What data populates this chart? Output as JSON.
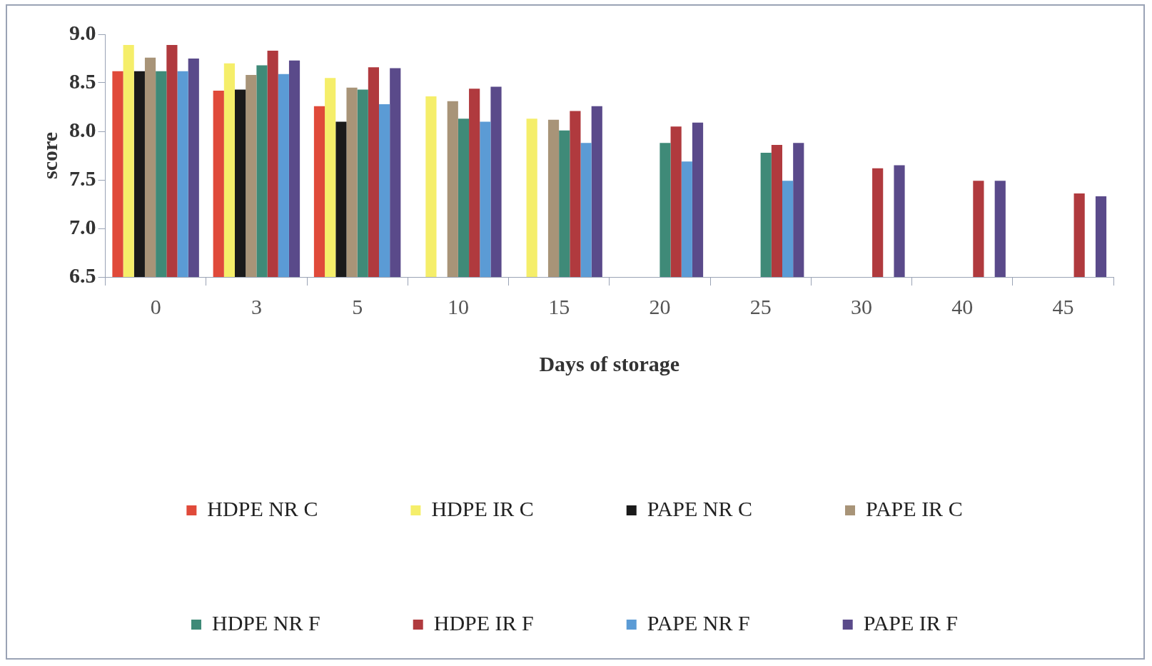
{
  "chart_data": {
    "type": "bar",
    "xlabel": "Days of storage",
    "ylabel": "score",
    "categories": [
      "0",
      "3",
      "5",
      "10",
      "15",
      "20",
      "25",
      "30",
      "40",
      "45"
    ],
    "series": [
      {
        "name": "HDPE NR C",
        "color": "#e04a3a",
        "values": [
          8.62,
          8.42,
          8.26,
          null,
          null,
          null,
          null,
          null,
          null,
          null
        ]
      },
      {
        "name": "HDPE IR C",
        "color": "#f5ee6a",
        "values": [
          8.89,
          8.7,
          8.55,
          8.36,
          8.13,
          null,
          null,
          null,
          null,
          null
        ]
      },
      {
        "name": "PAPE NR C",
        "color": "#1a1a1a",
        "values": [
          8.62,
          8.43,
          8.1,
          null,
          null,
          null,
          null,
          null,
          null,
          null
        ]
      },
      {
        "name": "PAPE IR C",
        "color": "#a89478",
        "values": [
          8.76,
          8.58,
          8.45,
          8.31,
          8.12,
          null,
          null,
          null,
          null,
          null
        ]
      },
      {
        "name": "HDPE NR F",
        "color": "#3f8a78",
        "values": [
          8.62,
          8.68,
          8.43,
          8.13,
          8.01,
          7.88,
          7.78,
          null,
          null,
          null
        ]
      },
      {
        "name": "HDPE IR F",
        "color": "#b03a3e",
        "values": [
          8.89,
          8.83,
          8.66,
          8.44,
          8.21,
          8.05,
          7.86,
          7.62,
          7.49,
          7.36
        ]
      },
      {
        "name": "PAPE NR F",
        "color": "#5b9bd5",
        "values": [
          8.62,
          8.59,
          8.28,
          8.1,
          7.88,
          7.69,
          7.49,
          null,
          null,
          null
        ]
      },
      {
        "name": "PAPE IR F",
        "color": "#5a4a8a",
        "values": [
          8.75,
          8.73,
          8.65,
          8.46,
          8.26,
          8.09,
          7.88,
          7.65,
          7.49,
          7.33
        ]
      }
    ],
    "ylim": [
      6.5,
      9.0
    ],
    "yticks": [
      6.5,
      {
        "value": 7,
        "label": "7.0"
      },
      7.5,
      {
        "value": 8,
        "label": "8.0"
      },
      8.5,
      {
        "value": 9,
        "label": "9.0"
      }
    ],
    "grid": false,
    "legend": "bottom"
  }
}
